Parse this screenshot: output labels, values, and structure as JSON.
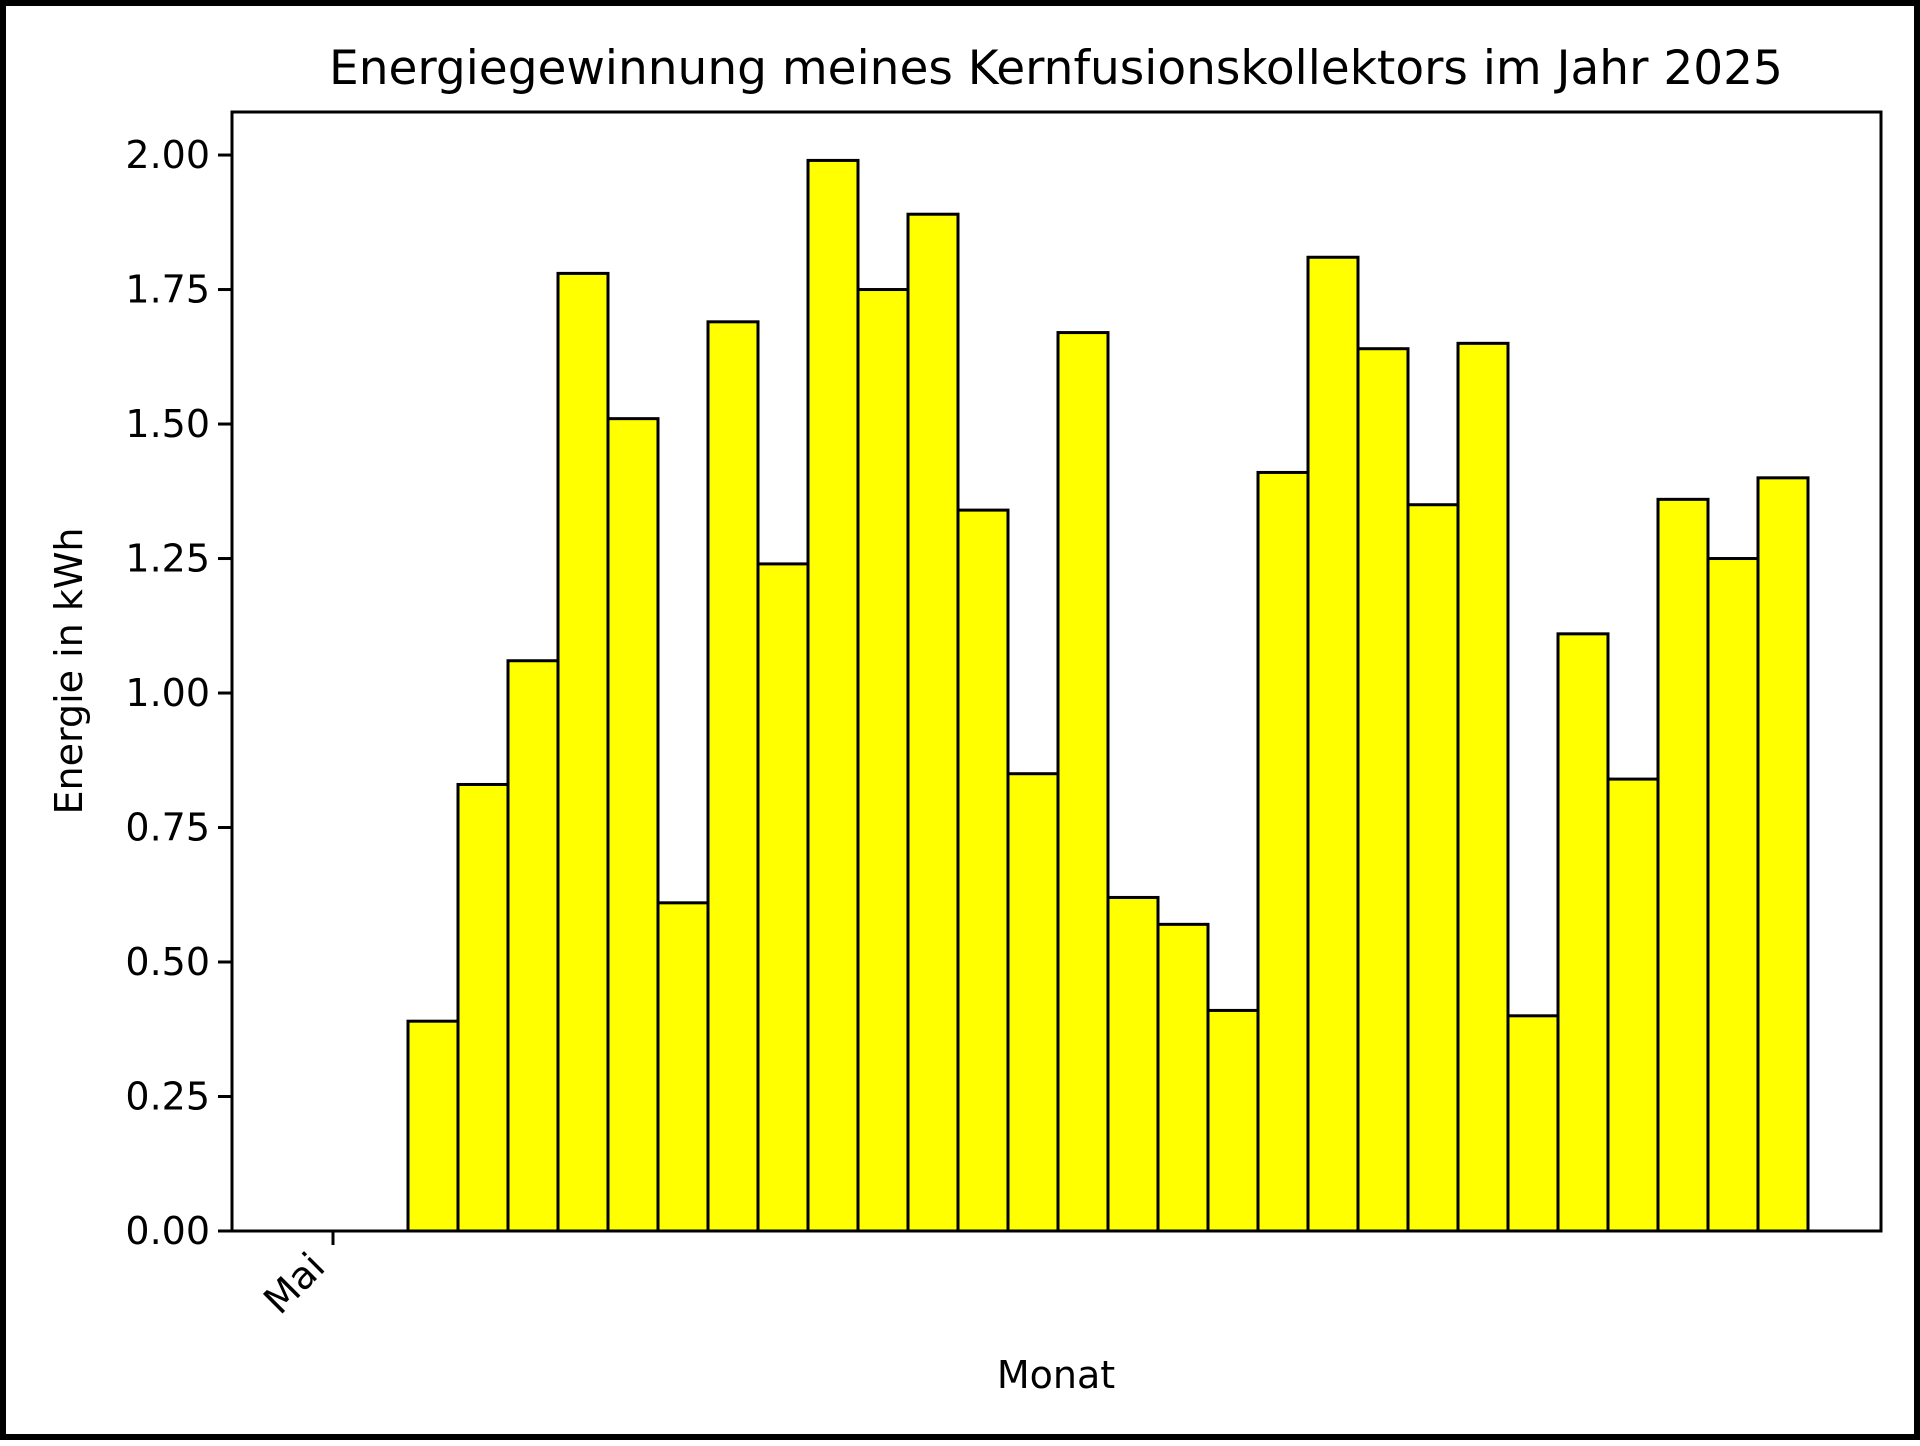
{
  "chart_data": {
    "type": "bar",
    "title": "Energiegewinnung meines Kernfusionskollektors im Jahr 2025",
    "xlabel": "Monat",
    "ylabel": "Energie in kWh",
    "x_tick_labels": [
      "Mai"
    ],
    "y_ticks": [
      "0.00",
      "0.25",
      "0.50",
      "0.75",
      "1.00",
      "1.25",
      "1.50",
      "1.75",
      "2.00"
    ],
    "ylim": [
      0,
      2.08
    ],
    "grid": false,
    "legend": "none",
    "bar_color": "#ffff00",
    "edge_color": "#000000",
    "values": [
      0.0,
      0.0,
      0.39,
      0.83,
      1.06,
      1.78,
      1.51,
      0.61,
      1.69,
      1.24,
      1.99,
      1.75,
      1.89,
      1.34,
      0.85,
      1.67,
      0.62,
      0.57,
      0.41,
      1.41,
      1.81,
      1.64,
      1.35,
      1.65,
      0.4,
      1.11,
      0.84,
      1.36,
      1.25,
      1.4
    ]
  }
}
